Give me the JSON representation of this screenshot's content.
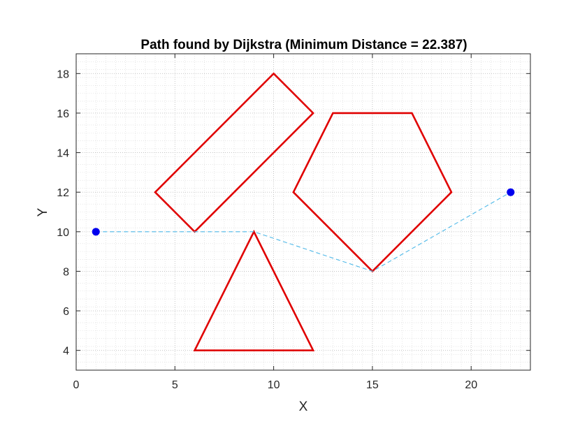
{
  "chart_data": {
    "type": "line",
    "title": "Path found by Dijkstra (Minimum Distance = 22.387)",
    "xlabel": "X",
    "ylabel": "Y",
    "xlim": [
      0,
      23
    ],
    "ylim": [
      3,
      19
    ],
    "xticks": [
      0,
      5,
      10,
      15,
      20
    ],
    "yticks": [
      4,
      6,
      8,
      10,
      12,
      14,
      16,
      18
    ],
    "grid": "on (major and minor, dotted)",
    "obstacles": [
      {
        "shape": "rectangle",
        "color": "#e00000",
        "points": [
          [
            6,
            10
          ],
          [
            4,
            12
          ],
          [
            10,
            18
          ],
          [
            12,
            16
          ]
        ]
      },
      {
        "shape": "pentagon",
        "color": "#e00000",
        "points": [
          [
            15,
            8
          ],
          [
            11,
            12
          ],
          [
            13,
            16
          ],
          [
            17,
            16
          ],
          [
            19,
            12
          ]
        ]
      },
      {
        "shape": "triangle",
        "color": "#e00000",
        "points": [
          [
            6,
            4
          ],
          [
            12,
            4
          ],
          [
            9,
            10
          ]
        ]
      }
    ],
    "path": {
      "color": "#4db8e8",
      "style": "dashed",
      "points": [
        [
          1,
          10
        ],
        [
          6,
          10
        ],
        [
          9,
          10
        ],
        [
          15,
          8
        ],
        [
          22,
          12
        ]
      ]
    },
    "endpoints": {
      "color": "#0000ee",
      "points": [
        [
          1,
          10
        ],
        [
          22,
          12
        ]
      ]
    }
  }
}
